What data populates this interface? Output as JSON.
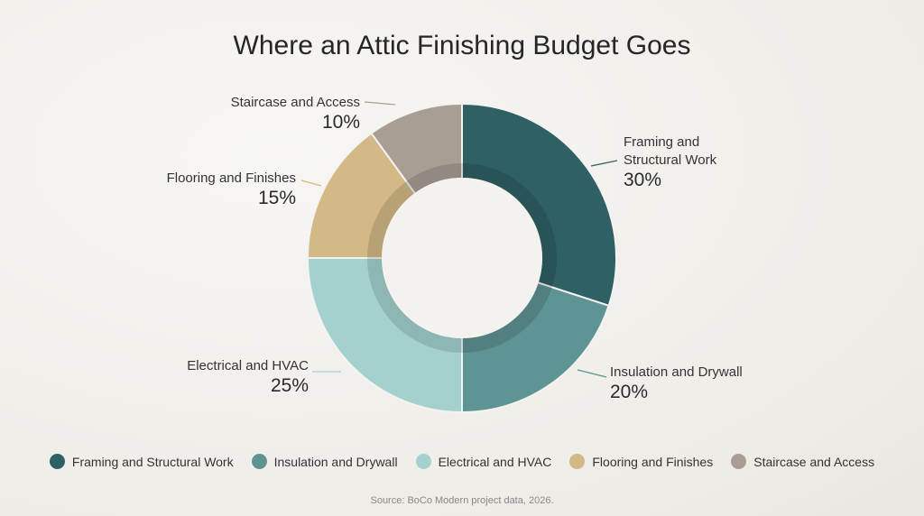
{
  "chart_data": {
    "type": "donut",
    "title": "Where an Attic Finishing Budget Goes",
    "categories": [
      "Framing and Structural Work",
      "Insulation and Drywall",
      "Electrical and HVAC",
      "Flooring and Finishes",
      "Staircase and Access"
    ],
    "values": [
      30,
      20,
      25,
      15,
      10
    ],
    "value_labels": [
      "30%",
      "20%",
      "25%",
      "15%",
      "10%"
    ],
    "colors": [
      "#2e6064",
      "#5f9494",
      "#a4d1cd",
      "#d3b987",
      "#a99e93"
    ],
    "legend": "bottom",
    "source": "Source: BoCo Modern project data, 2026."
  }
}
